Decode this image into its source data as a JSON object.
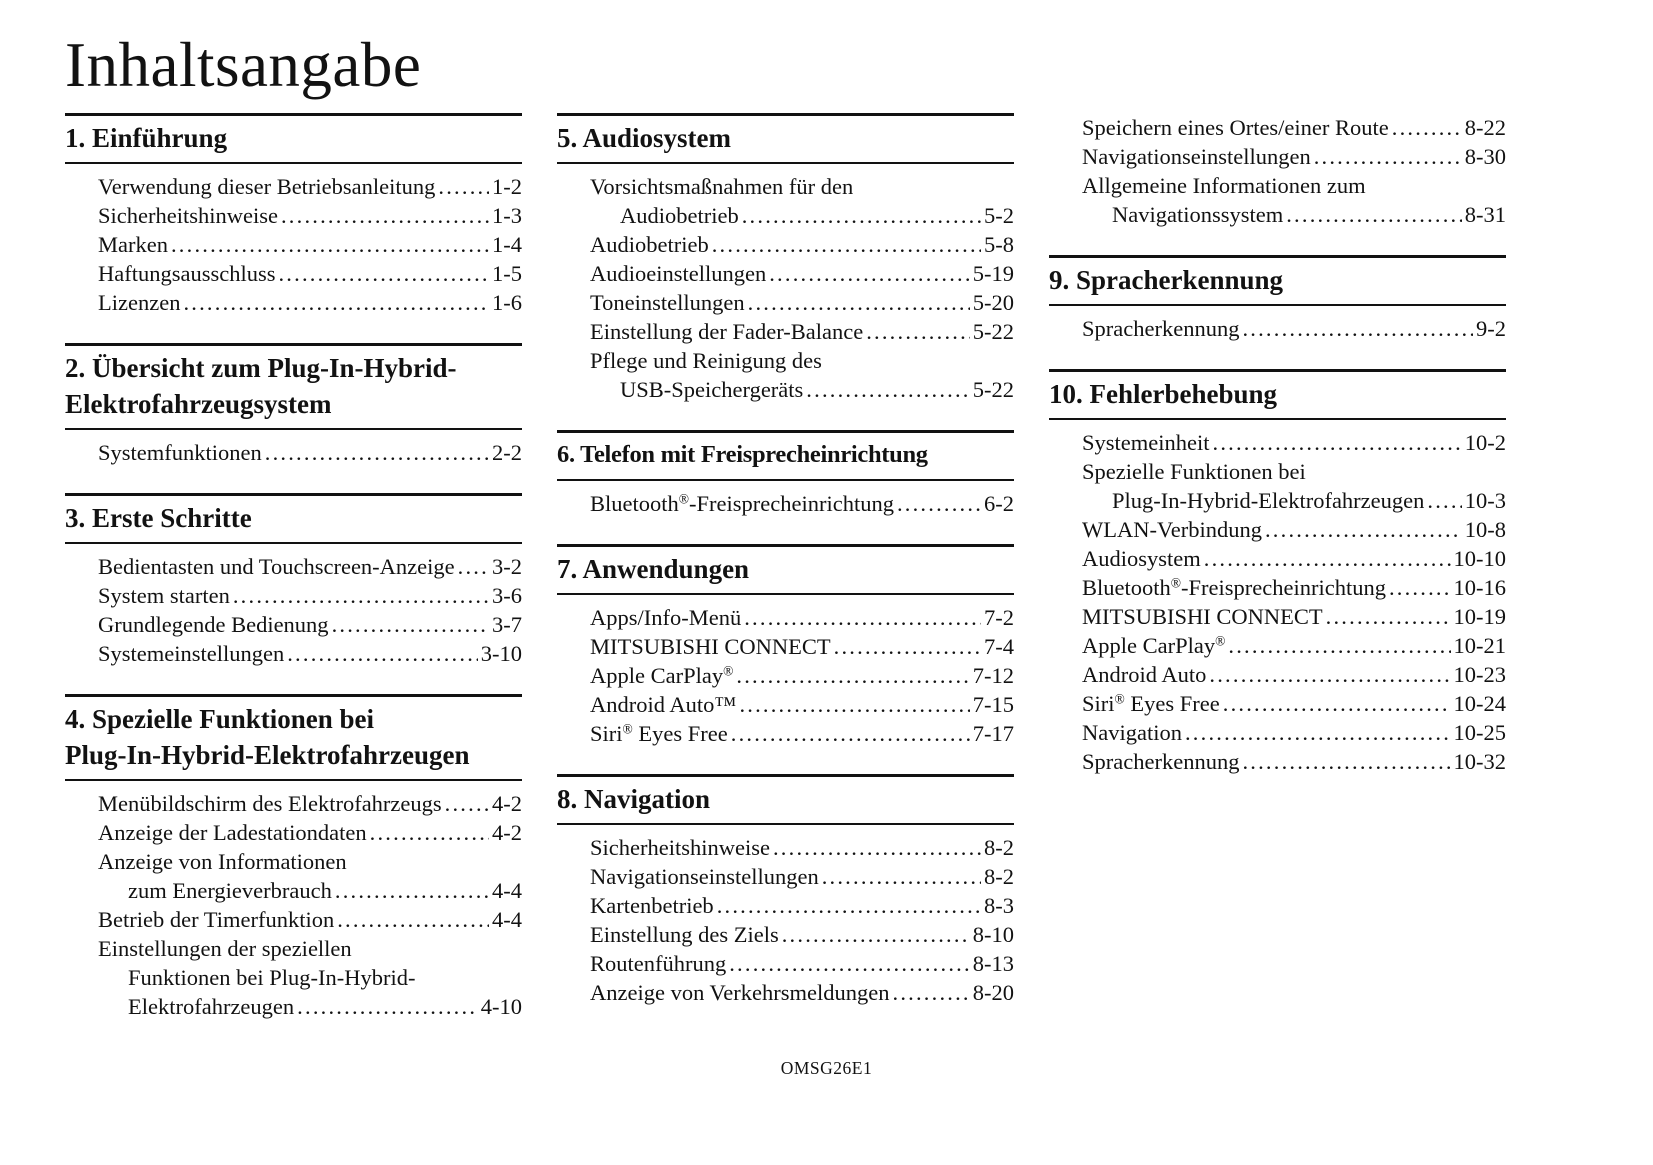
{
  "page": {
    "title": "Inhaltsangabe",
    "footer": "OMSG26E1"
  },
  "columns": [
    {
      "sections": [
        {
          "heading": "1. Einführung",
          "items": [
            {
              "text": "Verwendung dieser Betriebsanleitung",
              "page": "1-2"
            },
            {
              "text": "Sicherheitshinweise",
              "page": "1-3"
            },
            {
              "text": "Marken",
              "page": "1-4"
            },
            {
              "text": "Haftungsausschluss",
              "page": "1-5"
            },
            {
              "text": "Lizenzen",
              "page": "1-6"
            }
          ]
        },
        {
          "heading": "2. Übersicht zum Plug-In-Hybrid-\nElektrofahrzeugsystem",
          "items": [
            {
              "text": "Systemfunktionen",
              "page": "2-2"
            }
          ]
        },
        {
          "heading": "3. Erste Schritte",
          "items": [
            {
              "text": "Bedientasten und Touchscreen-Anzeige",
              "page": "3-2"
            },
            {
              "text": "System starten",
              "page": "3-6"
            },
            {
              "text": "Grundlegende Bedienung",
              "page": "3-7"
            },
            {
              "text": "Systemeinstellungen",
              "page": "3-10"
            }
          ]
        },
        {
          "heading": "4. Spezielle Funktionen bei\nPlug-In-Hybrid-Elektrofahrzeugen",
          "items": [
            {
              "text": "Menübildschirm des Elektrofahrzeugs",
              "page": "4-2"
            },
            {
              "text": "Anzeige der Ladestationdaten",
              "page": "4-2"
            },
            {
              "text": "Anzeige von Informationen"
            },
            {
              "text": "zum Energieverbrauch",
              "page": "4-4"
            },
            {
              "text": "Betrieb der Timerfunktion",
              "page": "4-4"
            },
            {
              "text": "Einstellungen der speziellen"
            },
            {
              "text": "Funktionen bei Plug-In-Hybrid-"
            },
            {
              "text": "Elektrofahrzeugen",
              "page": "4-10"
            }
          ]
        }
      ]
    },
    {
      "sections": [
        {
          "heading": "5. Audiosystem",
          "items": [
            {
              "text": "Vorsichtsmaßnahmen für den"
            },
            {
              "text": "Audiobetrieb",
              "page": "5-2"
            },
            {
              "text": "Audiobetrieb",
              "page": "5-8"
            },
            {
              "text": "Audioeinstellungen",
              "page": "5-19"
            },
            {
              "text": "Toneinstellungen",
              "page": "5-20"
            },
            {
              "text": "Einstellung der Fader-Balance",
              "page": "5-22"
            },
            {
              "text": "Pflege und Reinigung des"
            },
            {
              "text": "USB-Speichergeräts",
              "page": "5-22"
            }
          ]
        },
        {
          "heading": "6. Telefon mit Freisprecheinrichtung",
          "items": [
            {
              "text": "Bluetooth®-Freisprecheinrichtung",
              "page": "6-2"
            }
          ]
        },
        {
          "heading": "7. Anwendungen",
          "items": [
            {
              "text": "Apps/Info-Menü",
              "page": "7-2"
            },
            {
              "text": "MITSUBISHI CONNECT",
              "page": "7-4"
            },
            {
              "text": "Apple CarPlay®",
              "page": "7-12"
            },
            {
              "text": "Android Auto™",
              "page": "7-15"
            },
            {
              "text": "Siri® Eyes Free",
              "page": "7-17"
            }
          ]
        },
        {
          "heading": "8. Navigation",
          "items": [
            {
              "text": "Sicherheitshinweise",
              "page": "8-2"
            },
            {
              "text": "Navigationseinstellungen",
              "page": "8-2"
            },
            {
              "text": "Kartenbetrieb",
              "page": "8-3"
            },
            {
              "text": "Einstellung des Ziels",
              "page": "8-10"
            },
            {
              "text": "Routenführung",
              "page": "8-13"
            },
            {
              "text": "Anzeige von Verkehrsmeldungen",
              "page": "8-20"
            }
          ]
        }
      ]
    },
    {
      "sections": [
        {
          "heading": "",
          "items": [
            {
              "text": "Speichern eines Ortes/einer Route",
              "page": "8-22"
            },
            {
              "text": "Navigationseinstellungen",
              "page": "8-30"
            },
            {
              "text": "Allgemeine Informationen zum"
            },
            {
              "text": "Navigationssystem",
              "page": "8-31"
            }
          ]
        },
        {
          "heading": "9. Spracherkennung",
          "items": [
            {
              "text": "Spracherkennung",
              "page": "9-2"
            }
          ]
        },
        {
          "heading": "10. Fehlerbehebung",
          "items": [
            {
              "text": "Systemeinheit",
              "page": "10-2"
            },
            {
              "text": "Spezielle Funktionen bei"
            },
            {
              "text": "Plug-In-Hybrid-Elektrofahrzeugen",
              "page": "10-3"
            },
            {
              "text": "WLAN-Verbindung",
              "page": "10-8"
            },
            {
              "text": "Audiosystem",
              "page": "10-10"
            },
            {
              "text": "Bluetooth®-Freisprecheinrichtung",
              "page": "10-16"
            },
            {
              "text": "MITSUBISHI CONNECT",
              "page": "10-19"
            },
            {
              "text": "Apple CarPlay®",
              "page": "10-21"
            },
            {
              "text": "Android Auto",
              "page": "10-23"
            },
            {
              "text": "Siri® Eyes Free",
              "page": "10-24"
            },
            {
              "text": "Navigation",
              "page": "10-25"
            },
            {
              "text": "Spracherkennung",
              "page": "10-32"
            }
          ]
        }
      ]
    }
  ]
}
